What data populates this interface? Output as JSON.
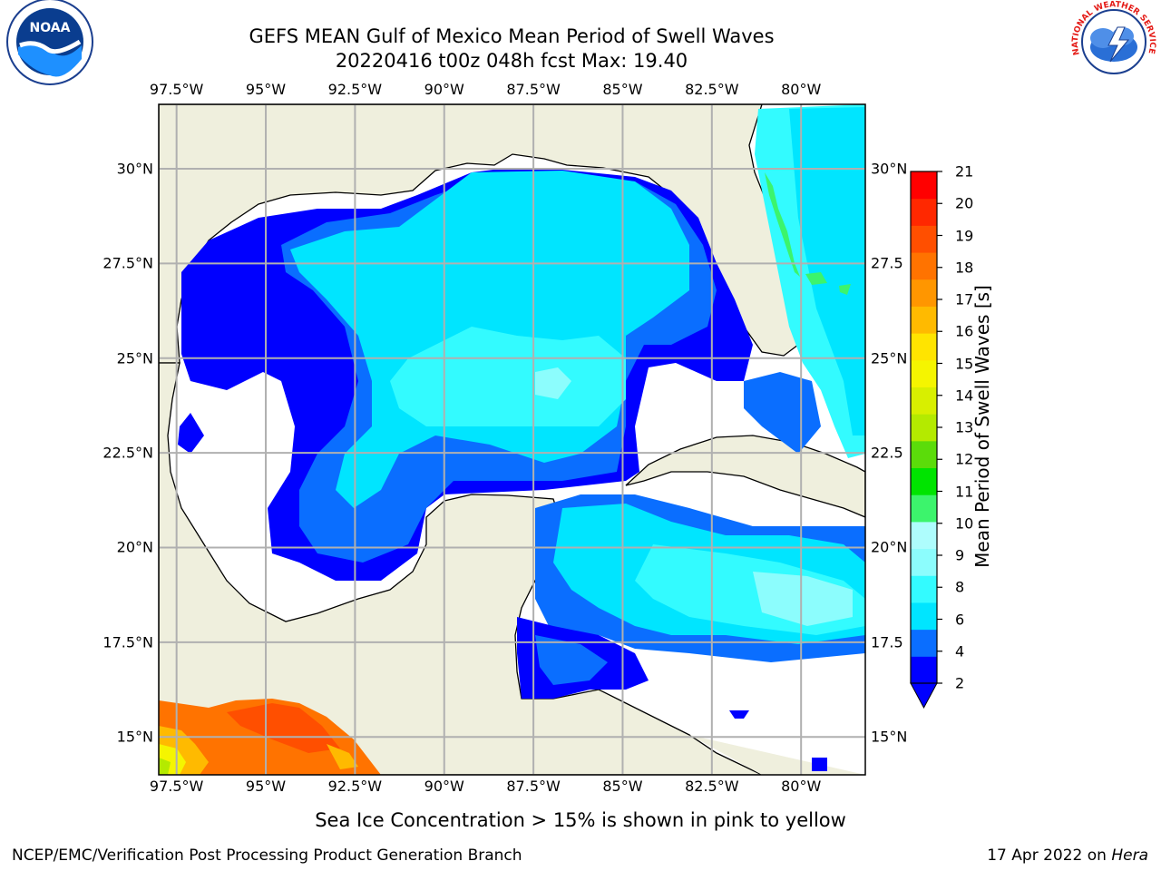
{
  "header": {
    "title_line1": "GEFS MEAN Gulf of Mexico Mean Period of Swell Waves",
    "title_line2": "20220416 t00z 048h fcst   Max: 19.40"
  },
  "axes": {
    "lon_labels": [
      "97.5°W",
      "95°W",
      "92.5°W",
      "90°W",
      "87.5°W",
      "85°W",
      "82.5°W",
      "80°W"
    ],
    "lon_values": [
      -97.5,
      -95,
      -92.5,
      -90,
      -87.5,
      -85,
      -82.5,
      -80
    ],
    "lon_range": [
      -98,
      -78.2
    ],
    "lat_labels_left": [
      "30°N",
      "27.5°N",
      "25°N",
      "22.5°N",
      "20°N",
      "17.5°N",
      "15°N"
    ],
    "lat_labels_right": [
      "30°N",
      "27.5",
      "25°N",
      "22.5",
      "20°N",
      "17.5",
      "15°N"
    ],
    "lat_values": [
      30,
      27.5,
      25,
      22.5,
      20,
      17.5,
      15
    ],
    "lat_range": [
      14,
      31.7
    ]
  },
  "colorbar": {
    "label": "Mean Period of Swell Waves [s]",
    "ticks": [
      "21",
      "20",
      "19",
      "18",
      "17",
      "16",
      "15",
      "14",
      "13",
      "12",
      "11",
      "10",
      "9",
      "8",
      "6",
      "4",
      "2"
    ],
    "colors": [
      "#0000ff",
      "#0a6eff",
      "#00e5ff",
      "#33fbff",
      "#8cfdfd",
      "#aefdfd",
      "#3cf46c",
      "#00e400",
      "#5bdc0a",
      "#b4ea00",
      "#d8ef00",
      "#f5f500",
      "#ffe400",
      "#ffba00",
      "#ff9600",
      "#ff7300",
      "#ff4f00",
      "#ff2800",
      "#ff0000"
    ],
    "extend_color": "#0000ff"
  },
  "palette": {
    "land": "#efefdd",
    "ocean_no_data": "#ffffff",
    "grid": "#b0b0b0"
  },
  "logos": {
    "noaa_text": "NOAA",
    "nws_text": "NATIONAL WEATHER SERVICE"
  },
  "footer": {
    "note": "Sea Ice Concentration > 15% is shown in pink to yellow",
    "credit": "NCEP/EMC/Verification Post Processing Product Generation Branch",
    "date": "17 Apr 2022 on",
    "machine": "Hera"
  }
}
